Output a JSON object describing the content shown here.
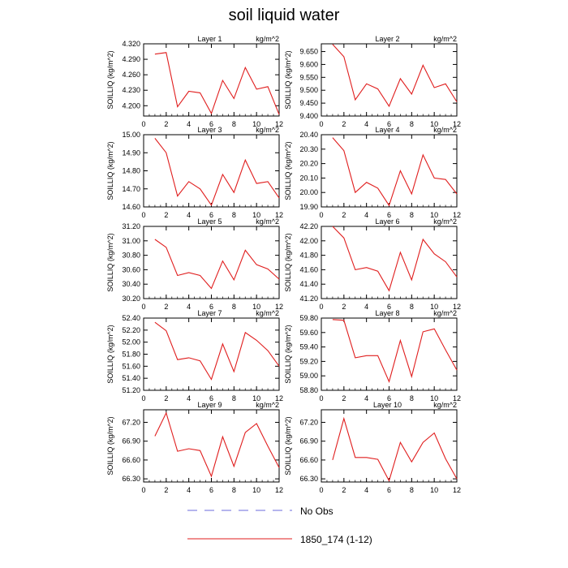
{
  "title": "soil liquid water",
  "legend": {
    "entries": [
      {
        "label": "No Obs",
        "color": "#6b6bdc",
        "dash": true
      },
      {
        "label": "1850_174 (1-12)",
        "color": "#e01e1e",
        "dash": false
      }
    ]
  },
  "chart_data": [
    {
      "type": "line",
      "title": "Layer 1",
      "unit": "kg/m^2",
      "ylabel": "SOILLIQ (kg/m^2)",
      "ylim": [
        4.18,
        4.32
      ],
      "yticks": [
        4.2,
        4.23,
        4.26,
        4.29,
        4.32
      ],
      "ydec": 3,
      "xlim": [
        0,
        12
      ],
      "xticks": [
        0,
        2,
        4,
        6,
        8,
        10,
        12
      ],
      "series": [
        {
          "x": [
            1,
            2,
            3,
            4,
            5,
            6,
            7,
            8,
            9,
            10,
            11,
            12
          ],
          "values": [
            4.3,
            4.303,
            4.198,
            4.228,
            4.225,
            4.185,
            4.249,
            4.214,
            4.274,
            4.232,
            4.237,
            4.183
          ]
        }
      ]
    },
    {
      "type": "line",
      "title": "Layer 2",
      "unit": "kg/m^2",
      "ylabel": "SOILLIQ (kg/m^2)",
      "ylim": [
        9.4,
        9.68
      ],
      "yticks": [
        9.4,
        9.45,
        9.5,
        9.55,
        9.6,
        9.65
      ],
      "ydec": 3,
      "xlim": [
        0,
        12
      ],
      "xticks": [
        0,
        2,
        4,
        6,
        8,
        10,
        12
      ],
      "series": [
        {
          "x": [
            1,
            2,
            3,
            4,
            5,
            6,
            7,
            8,
            9,
            10,
            11,
            12
          ],
          "values": [
            9.678,
            9.63,
            9.463,
            9.525,
            9.505,
            9.438,
            9.545,
            9.485,
            9.597,
            9.51,
            9.525,
            9.455
          ]
        }
      ]
    },
    {
      "type": "line",
      "title": "Layer 3",
      "unit": "kg/m^2",
      "ylabel": "SOILLIQ (kg/m^2)",
      "ylim": [
        14.6,
        15.0
      ],
      "yticks": [
        14.6,
        14.7,
        14.8,
        14.9,
        15.0
      ],
      "ydec": 2,
      "xlim": [
        0,
        12
      ],
      "xticks": [
        0,
        2,
        4,
        6,
        8,
        10,
        12
      ],
      "series": [
        {
          "x": [
            1,
            2,
            3,
            4,
            5,
            6,
            7,
            8,
            9,
            10,
            11,
            12
          ],
          "values": [
            14.98,
            14.9,
            14.66,
            14.74,
            14.7,
            14.61,
            14.78,
            14.68,
            14.86,
            14.73,
            14.74,
            14.65
          ]
        }
      ]
    },
    {
      "type": "line",
      "title": "Layer 4",
      "unit": "kg/m^2",
      "ylabel": "SOILLIQ (kg/m^2)",
      "ylim": [
        19.9,
        20.4
      ],
      "yticks": [
        19.9,
        20.0,
        20.1,
        20.2,
        20.3,
        20.4
      ],
      "ydec": 2,
      "xlim": [
        0,
        12
      ],
      "xticks": [
        0,
        2,
        4,
        6,
        8,
        10,
        12
      ],
      "series": [
        {
          "x": [
            1,
            2,
            3,
            4,
            5,
            6,
            7,
            8,
            9,
            10,
            11,
            12
          ],
          "values": [
            20.38,
            20.29,
            20.0,
            20.07,
            20.03,
            19.91,
            20.15,
            19.99,
            20.26,
            20.1,
            20.09,
            19.99
          ]
        }
      ]
    },
    {
      "type": "line",
      "title": "Layer 5",
      "unit": "kg/m^2",
      "ylabel": "SOILLIQ (kg/m^2)",
      "ylim": [
        30.2,
        31.2
      ],
      "yticks": [
        30.2,
        30.4,
        30.6,
        30.8,
        31.0,
        31.2
      ],
      "ydec": 2,
      "xlim": [
        0,
        12
      ],
      "xticks": [
        0,
        2,
        4,
        6,
        8,
        10,
        12
      ],
      "series": [
        {
          "x": [
            1,
            2,
            3,
            4,
            5,
            6,
            7,
            8,
            9,
            10,
            11,
            12
          ],
          "values": [
            31.02,
            30.91,
            30.52,
            30.56,
            30.52,
            30.34,
            30.72,
            30.46,
            30.87,
            30.67,
            30.61,
            30.47
          ]
        }
      ]
    },
    {
      "type": "line",
      "title": "Layer 6",
      "unit": "kg/m^2",
      "ylabel": "SOILLIQ (kg/m^2)",
      "ylim": [
        41.2,
        42.2
      ],
      "yticks": [
        41.2,
        41.4,
        41.6,
        41.8,
        42.0,
        42.2
      ],
      "ydec": 2,
      "xlim": [
        0,
        12
      ],
      "xticks": [
        0,
        2,
        4,
        6,
        8,
        10,
        12
      ],
      "series": [
        {
          "x": [
            1,
            2,
            3,
            4,
            5,
            6,
            7,
            8,
            9,
            10,
            11,
            12
          ],
          "values": [
            42.2,
            42.04,
            41.6,
            41.63,
            41.58,
            41.31,
            41.84,
            41.46,
            42.02,
            41.82,
            41.71,
            41.5
          ]
        }
      ]
    },
    {
      "type": "line",
      "title": "Layer 7",
      "unit": "kg/m^2",
      "ylabel": "SOILLIQ (kg/m^2)",
      "ylim": [
        51.2,
        52.4
      ],
      "yticks": [
        51.2,
        51.4,
        51.6,
        51.8,
        52.0,
        52.2,
        52.4
      ],
      "ydec": 2,
      "xlim": [
        0,
        12
      ],
      "xticks": [
        0,
        2,
        4,
        6,
        8,
        10,
        12
      ],
      "series": [
        {
          "x": [
            1,
            2,
            3,
            4,
            5,
            6,
            7,
            8,
            9,
            10,
            11,
            12
          ],
          "values": [
            52.33,
            52.19,
            51.71,
            51.74,
            51.69,
            51.38,
            51.97,
            51.51,
            52.16,
            52.03,
            51.86,
            51.6
          ]
        }
      ]
    },
    {
      "type": "line",
      "title": "Layer 8",
      "unit": "kg/m^2",
      "ylabel": "SOILLIQ (kg/m^2)",
      "ylim": [
        58.8,
        59.8
      ],
      "yticks": [
        58.8,
        59.0,
        59.2,
        59.4,
        59.6,
        59.8
      ],
      "ydec": 2,
      "xlim": [
        0,
        12
      ],
      "xticks": [
        0,
        2,
        4,
        6,
        8,
        10,
        12
      ],
      "series": [
        {
          "x": [
            1,
            2,
            3,
            4,
            5,
            6,
            7,
            8,
            9,
            10,
            11,
            12
          ],
          "values": [
            59.78,
            59.77,
            59.25,
            59.28,
            59.28,
            58.92,
            59.49,
            58.99,
            59.61,
            59.65,
            59.36,
            59.08
          ]
        }
      ]
    },
    {
      "type": "line",
      "title": "Layer 9",
      "unit": "kg/m^2",
      "ylabel": "SOILLIQ (kg/m^2)",
      "ylim": [
        66.25,
        67.4
      ],
      "yticks": [
        66.3,
        66.6,
        66.9,
        67.2
      ],
      "ydec": 2,
      "xlim": [
        0,
        12
      ],
      "xticks": [
        0,
        2,
        4,
        6,
        8,
        10,
        12
      ],
      "series": [
        {
          "x": [
            1,
            2,
            3,
            4,
            5,
            6,
            7,
            8,
            9,
            10,
            11,
            12
          ],
          "values": [
            66.98,
            67.35,
            66.74,
            66.78,
            66.75,
            66.34,
            66.97,
            66.5,
            67.04,
            67.18,
            66.82,
            66.48
          ]
        }
      ]
    },
    {
      "type": "line",
      "title": "Layer 10",
      "unit": "kg/m^2",
      "ylabel": "SOILLIQ (kg/m^2)",
      "ylim": [
        66.25,
        67.4
      ],
      "yticks": [
        66.3,
        66.6,
        66.9,
        67.2
      ],
      "ydec": 2,
      "xlim": [
        0,
        12
      ],
      "xticks": [
        0,
        2,
        4,
        6,
        8,
        10,
        12
      ],
      "series": [
        {
          "x": [
            1,
            2,
            3,
            4,
            5,
            6,
            7,
            8,
            9,
            10,
            11,
            12
          ],
          "values": [
            66.6,
            67.26,
            66.64,
            66.64,
            66.61,
            66.27,
            66.88,
            66.57,
            66.88,
            67.03,
            66.62,
            66.3
          ]
        }
      ]
    }
  ]
}
